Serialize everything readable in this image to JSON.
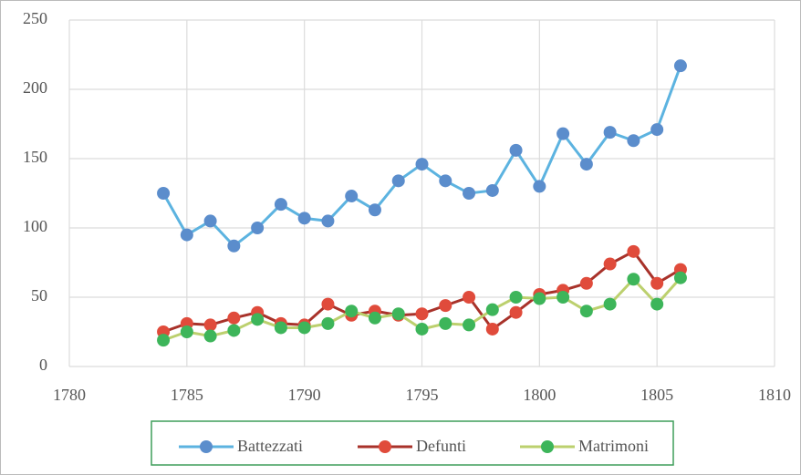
{
  "chart_data": {
    "type": "line",
    "x": [
      1784,
      1785,
      1786,
      1787,
      1788,
      1789,
      1790,
      1791,
      1792,
      1793,
      1794,
      1795,
      1796,
      1797,
      1798,
      1799,
      1800,
      1801,
      1802,
      1803,
      1804,
      1805,
      1806
    ],
    "series": [
      {
        "name": "Battezzati",
        "color": "#5cb3e0",
        "marker_color": "#5b8dcc",
        "values": [
          125,
          95,
          105,
          87,
          100,
          117,
          107,
          105,
          123,
          113,
          134,
          146,
          134,
          125,
          127,
          156,
          130,
          168,
          146,
          169,
          163,
          171,
          217
        ]
      },
      {
        "name": "Defunti",
        "color": "#a8322a",
        "marker_color": "#e04b3b",
        "values": [
          25,
          31,
          30,
          35,
          39,
          31,
          30,
          45,
          37,
          40,
          37,
          38,
          44,
          50,
          27,
          39,
          52,
          55,
          60,
          74,
          83,
          60,
          70
        ]
      },
      {
        "name": "Matrimoni",
        "color": "#bcd06e",
        "marker_color": "#3db55a",
        "values": [
          19,
          25,
          22,
          26,
          34,
          28,
          28,
          31,
          40,
          35,
          38,
          27,
          31,
          30,
          41,
          50,
          49,
          50,
          40,
          45,
          63,
          45,
          64
        ]
      }
    ],
    "xlim": [
      1780,
      1810
    ],
    "xticks": [
      1780,
      1785,
      1790,
      1795,
      1800,
      1805,
      1810
    ],
    "ylim": [
      0,
      250
    ],
    "yticks": [
      0,
      50,
      100,
      150,
      200,
      250
    ],
    "grid": true,
    "legend": "bottom"
  }
}
